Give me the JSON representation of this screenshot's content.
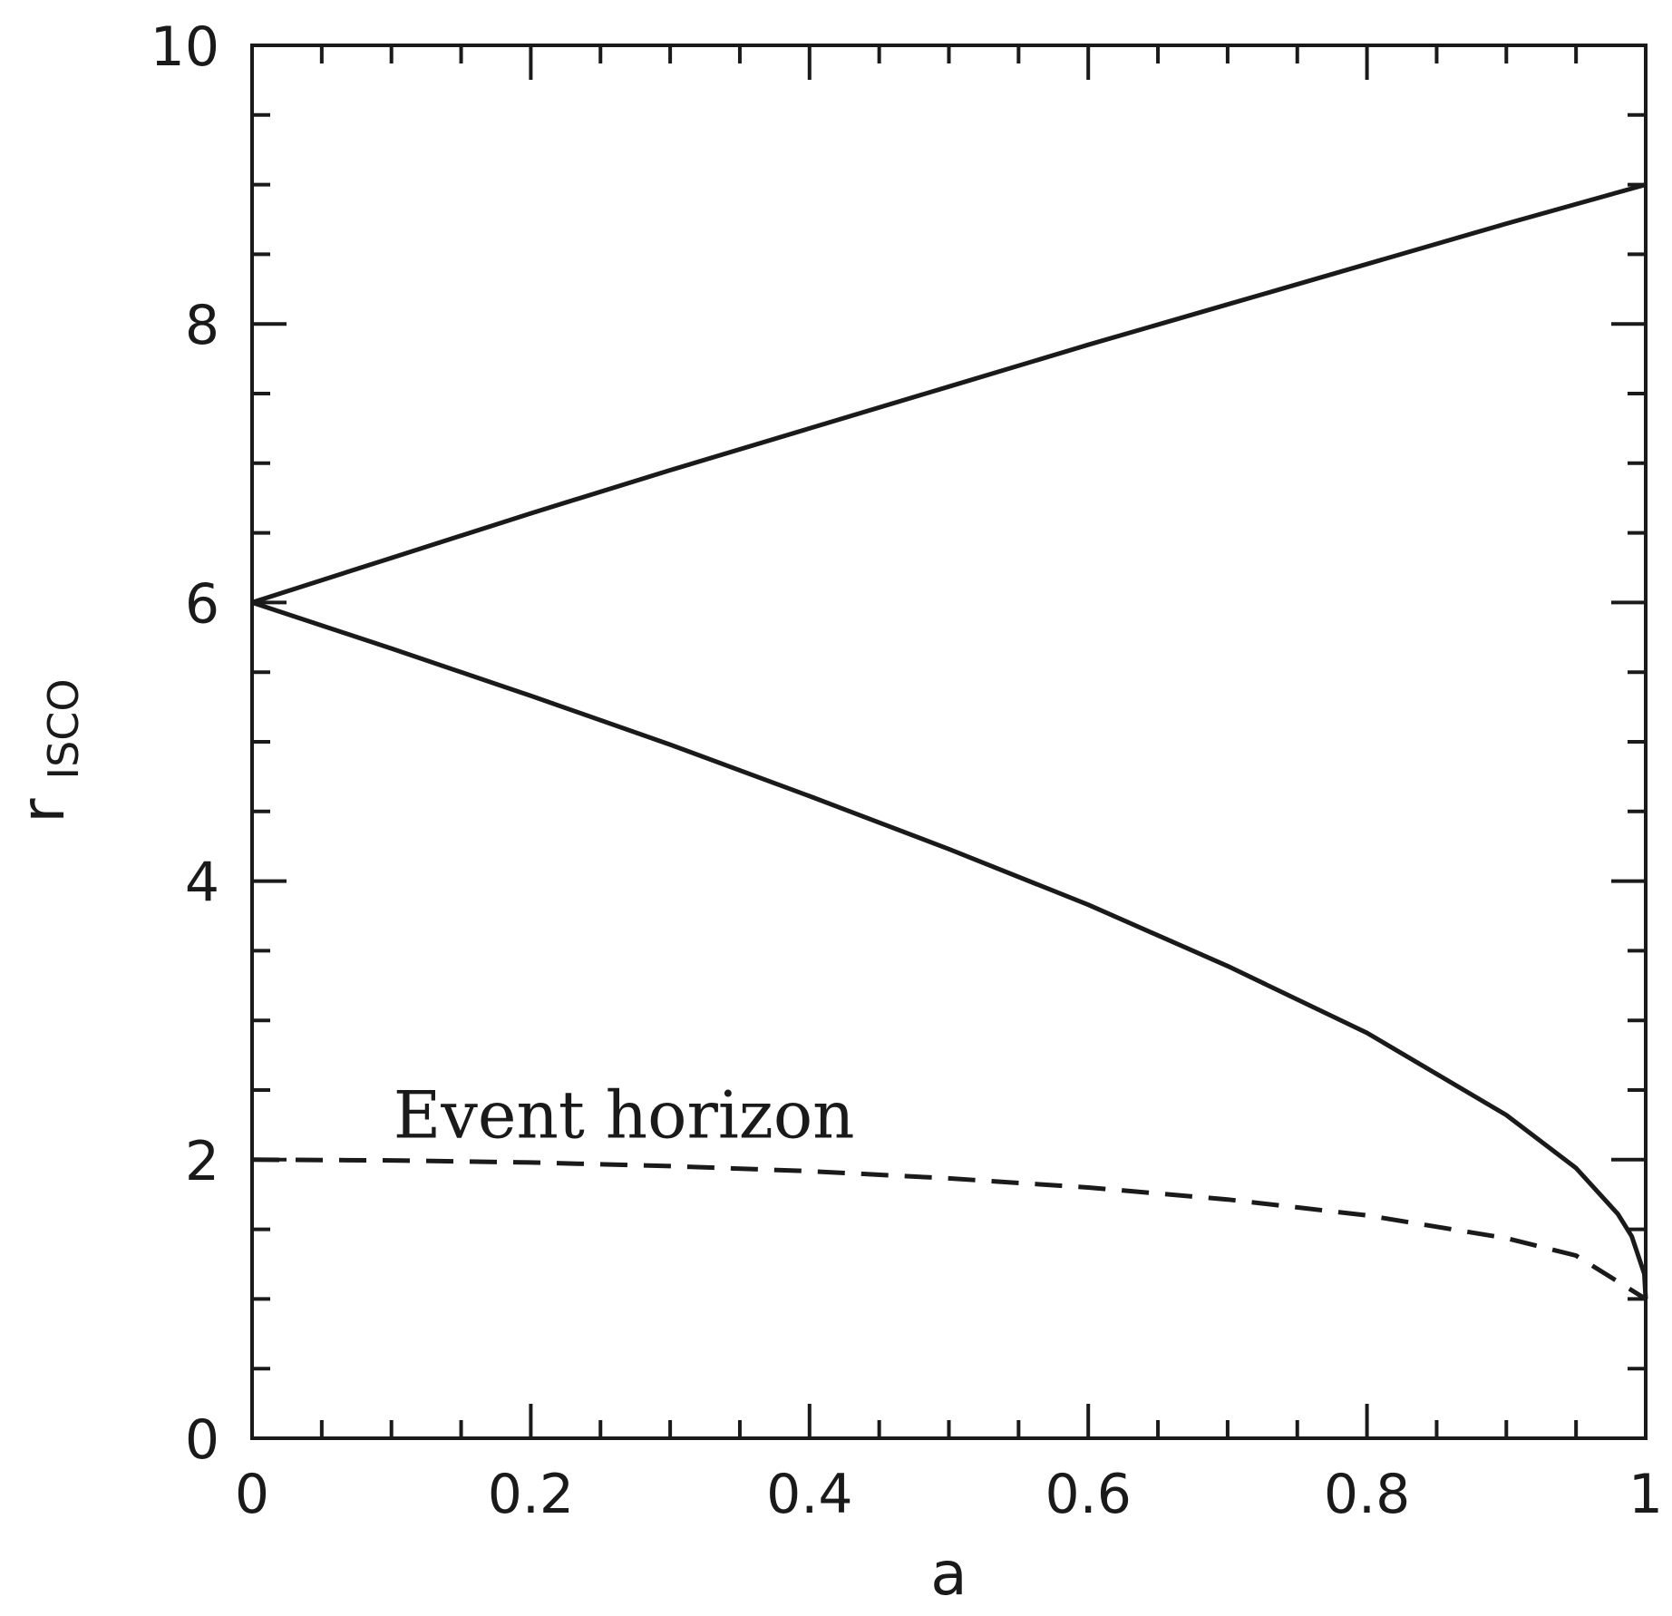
{
  "chart_data": {
    "type": "line",
    "xlabel": "a",
    "ylabel": {
      "main": "r",
      "subscript": "ISCO"
    },
    "xlim": [
      0,
      1
    ],
    "ylim": [
      0,
      10
    ],
    "x_ticks": {
      "major": [
        0,
        0.2,
        0.4,
        0.6,
        0.8,
        1
      ],
      "labels": [
        "0",
        "0.2",
        "0.4",
        "0.6",
        "0.8",
        "1"
      ],
      "minor_step": 0.05
    },
    "y_ticks": {
      "major": [
        0,
        2,
        4,
        6,
        8,
        10
      ],
      "labels": [
        "0",
        "2",
        "4",
        "6",
        "8",
        "10"
      ],
      "minor_step": 0.5
    },
    "grid": false,
    "series": [
      {
        "style": "solid",
        "color": "#1a1a1a",
        "x": [
          0,
          0.1,
          0.2,
          0.3,
          0.4,
          0.5,
          0.6,
          0.7,
          0.8,
          0.9,
          1.0
        ],
        "y": [
          6.0,
          6.32,
          6.64,
          6.95,
          7.25,
          7.55,
          7.85,
          8.14,
          8.43,
          8.72,
          9.0
        ]
      },
      {
        "style": "solid",
        "color": "#1a1a1a",
        "x": [
          0,
          0.1,
          0.2,
          0.3,
          0.4,
          0.5,
          0.6,
          0.7,
          0.8,
          0.9,
          0.95,
          0.98,
          0.99,
          0.999,
          1.0
        ],
        "y": [
          6.0,
          5.67,
          5.33,
          4.98,
          4.61,
          4.23,
          3.83,
          3.39,
          2.91,
          2.32,
          1.94,
          1.61,
          1.45,
          1.18,
          1.0
        ]
      },
      {
        "style": "dashed",
        "color": "#1a1a1a",
        "x": [
          0,
          0.1,
          0.2,
          0.3,
          0.4,
          0.5,
          0.6,
          0.7,
          0.8,
          0.9,
          0.95,
          1.0
        ],
        "y": [
          2.0,
          1.995,
          1.98,
          1.954,
          1.917,
          1.866,
          1.8,
          1.714,
          1.6,
          1.436,
          1.312,
          1.0
        ]
      }
    ],
    "annotations": [
      {
        "text": "Event horizon",
        "x": 0.1,
        "y": 2.3
      }
    ]
  }
}
